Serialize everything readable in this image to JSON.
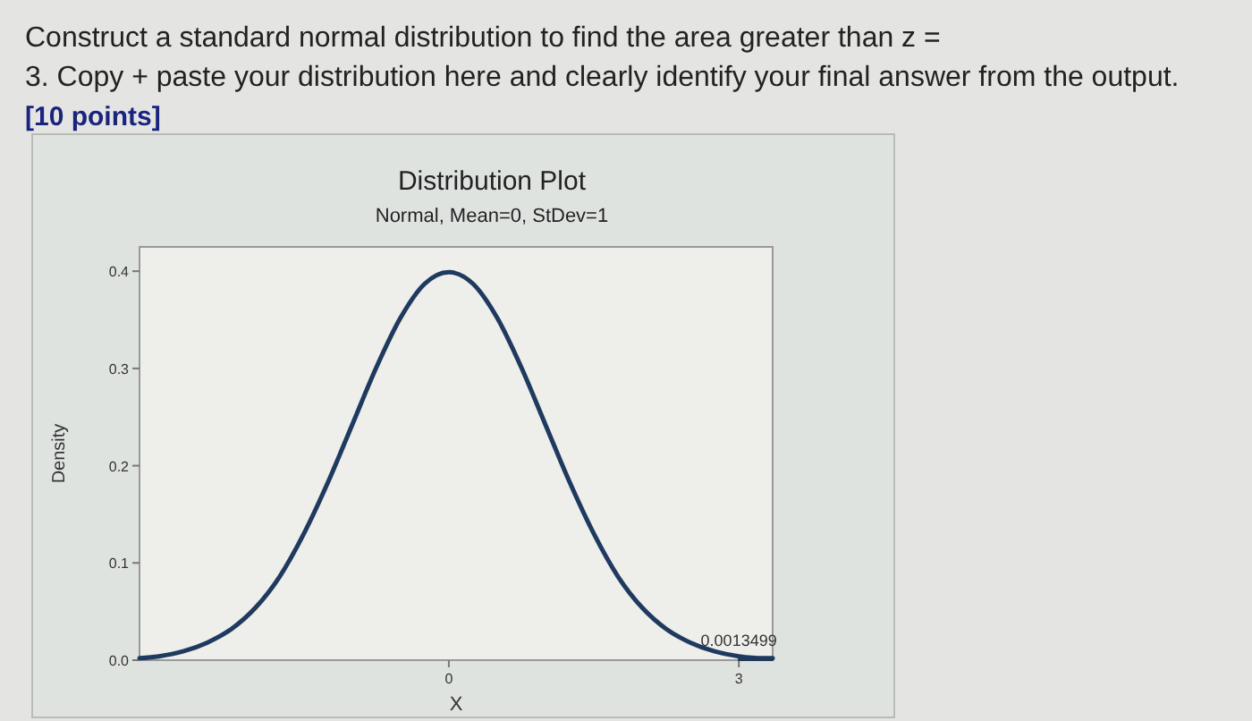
{
  "chart_data": {
    "type": "line",
    "title": "Distribution Plot",
    "subtitle": "Normal, Mean=0, StDev=1",
    "xlabel": "X",
    "ylabel": "Density",
    "annotations": [
      "Construct a standard normal distribution to find the area greater than z =",
      "3. Copy + paste your distribution here and clearly identify your final answer from the output.",
      "[10 points]",
      {
        "text": "0.0013499",
        "x": 3,
        "y": 0.004
      }
    ],
    "xlim": [
      -3.2,
      3.35
    ],
    "xticks": [
      0,
      3
    ],
    "ylim": [
      0,
      0.425
    ],
    "yticks": [
      {
        "value": 0,
        "label": "0.0"
      },
      0.1,
      0.2,
      0.3,
      0.4
    ],
    "series": [
      {
        "color": "#1f3a5f",
        "x": [
          -3.2,
          -3,
          -2.75,
          -2.5,
          -2.25,
          -2,
          -1.75,
          -1.5,
          -1.25,
          -1,
          -0.75,
          -0.5,
          -0.25,
          0,
          0.25,
          0.5,
          0.75,
          1,
          1.25,
          1.5,
          1.75,
          2,
          2.25,
          2.5,
          2.75,
          3,
          3.25,
          3.35
        ],
        "values": [
          0.002,
          0.004,
          0.009,
          0.018,
          0.032,
          0.054,
          0.086,
          0.13,
          0.183,
          0.242,
          0.301,
          0.352,
          0.387,
          0.399,
          0.387,
          0.352,
          0.301,
          0.242,
          0.183,
          0.13,
          0.086,
          0.054,
          0.032,
          0.018,
          0.009,
          0.004,
          0.002,
          0.002
        ]
      },
      {
        "type": "area",
        "color": "#1f3a5f",
        "x": [
          3,
          3.25,
          3.35
        ],
        "values": [
          0.004,
          0.002,
          0.002
        ]
      }
    ]
  }
}
